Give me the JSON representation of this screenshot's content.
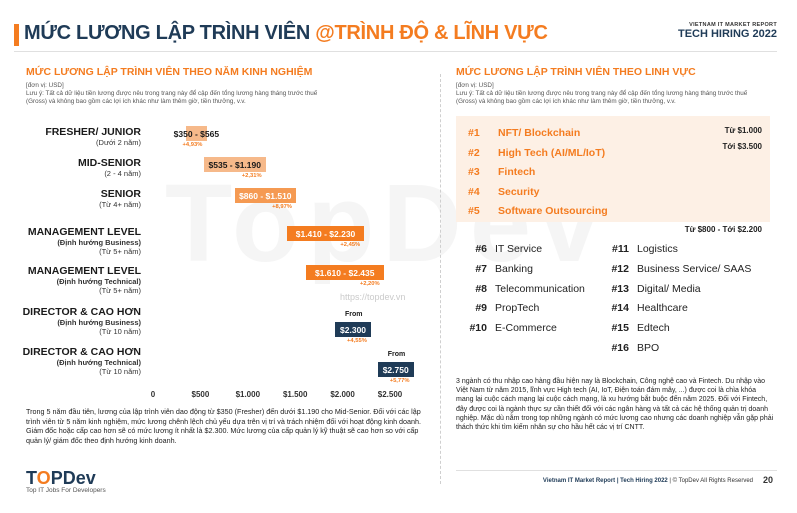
{
  "header": {
    "title_main": "MỨC LƯƠNG LẬP TRÌNH VIÊN ",
    "title_accent": "@TRÌNH ĐỘ & LĨNH VỰC",
    "report_small": "VIETNAM IT MARKET REPORT",
    "report_big": "TECH HIRING 2022"
  },
  "watermark": {
    "text": "TopDev",
    "url": "https://topdev.vn"
  },
  "left": {
    "title": "MỨC LƯƠNG LẬP TRÌNH VIÊN THEO NĂM KINH NGHIỆM",
    "unit": "[đơn vị: USD]",
    "note": "Lưu ý: Tất cả dữ liệu tiền lương được nêu trong trang này để cập đến tổng lương hàng tháng trước thuế (Gross) và không bao gồm các lợi ích khác như làm thêm giờ, tiền thưởng, v.v.",
    "paragraph": "Trong 5 năm đầu tiên, lương của lập trình viên dao động từ $350 (Fresher) đến dưới $1.190 cho Mid-Senior. Đối với các lập trình viên từ 5 năm kinh nghiệm, mức lương chênh lệch chủ yếu dựa trên vị trí và trách nhiệm đối với hoạt động kinh doanh. Giám đốc hoặc cấp cao hơn sẽ có mức lương ít nhất là $2.300. Mức lương của cấp quản lý kỹ thuật sẽ cao hơn so với cấp quản lý/ giám đốc theo định hướng kinh doanh."
  },
  "right": {
    "title": "MỨC LƯƠNG LẬP TRÌNH VIÊN THEO LINH VỰC",
    "unit": "[đơn vị: USD]",
    "note": "Lưu ý: Tất cả dữ liệu tiền lương được nêu trong trang này để cập đến tổng lương hàng tháng trước thuế (Gross) và không bao gồm các lợi ích khác như làm thêm giờ, tiền thưởng, v.v.",
    "top": [
      {
        "rank": "#1",
        "name": "NFT/ Blockchain"
      },
      {
        "rank": "#2",
        "name": "High Tech (AI/ML/IoT)"
      },
      {
        "rank": "#3",
        "name": "Fintech"
      },
      {
        "rank": "#4",
        "name": "Security"
      },
      {
        "rank": "#5",
        "name": "Software Outsourcing"
      }
    ],
    "top_range_from": "Từ $1.000",
    "top_range_to": "Tới $3.500",
    "rest_range": "Từ $800 - Tới $2.200",
    "rest_left": [
      {
        "rank": "#6",
        "name": "IT Service"
      },
      {
        "rank": "#7",
        "name": "Banking"
      },
      {
        "rank": "#8",
        "name": "Telecommunication"
      },
      {
        "rank": "#9",
        "name": "PropTech"
      },
      {
        "rank": "#10",
        "name": "E-Commerce"
      }
    ],
    "rest_right": [
      {
        "rank": "#11",
        "name": "Logistics"
      },
      {
        "rank": "#12",
        "name": "Business Service/ SAAS"
      },
      {
        "rank": "#13",
        "name": "Digital/ Media"
      },
      {
        "rank": "#14",
        "name": "Healthcare"
      },
      {
        "rank": "#15",
        "name": "Edtech"
      },
      {
        "rank": "#16",
        "name": "BPO"
      }
    ],
    "paragraph": "3 ngành có thu nhập cao hàng đầu hiện nay là Blockchain, Công nghệ cao và Fintech. Du nhập vào Việt Nam từ năm 2015, lĩnh vực High tech (AI, IoT, Điện toán đám mây, ...) được coi là chìa khóa mang lại cuộc cách mạng lại cuộc cách mạng, là xu hướng bắt buộc đến năm 2025. Đối với Fintech, đây được coi là ngành thực sự cần thiết đối với các ngân hàng và tất cả các hệ thống quản trị doanh nghiệp. Mặc dù nằm trong top những ngành có mức lương cao nhưng các doanh nghiệp vẫn gặp phải thách thức khi tìm kiếm nhân sự cho hầu hết các vị trí CNTT."
  },
  "footer": {
    "logo_a": "T",
    "logo_o": "O",
    "logo_b": "PDev",
    "tagline": "Top IT Jobs For Developers",
    "report": "Vietnam IT Market Report | Tech Hiring 2022",
    "copyright": " | © TopDev All Rights Reserved",
    "page": "20"
  },
  "colors": {
    "accent": "#f47c20",
    "navy": "#1f3b57",
    "bar_light": "#f6b98a",
    "bar_mid": "#f59a52",
    "bar_dark": "#f47c20",
    "bar_navy": "#1f3b57"
  },
  "chart_data": {
    "type": "bar",
    "orientation": "horizontal",
    "xlim": [
      0,
      2500
    ],
    "ticks": [
      "0",
      "$500",
      "$1.000",
      "$1.500",
      "$2.000",
      "$2.500"
    ],
    "tick_values": [
      0,
      500,
      1000,
      1500,
      2000,
      2500
    ],
    "rows": [
      {
        "label": "FRESHER/ JUNIOR",
        "sub1": "(Dưới 2 năm)",
        "sub2": "",
        "min": 350,
        "max": 565,
        "text": "$350 - $565",
        "pct": "+4,93%",
        "from": ""
      },
      {
        "label": "MID-SENIOR",
        "sub1": "(2 - 4 năm)",
        "sub2": "",
        "min": 535,
        "max": 1190,
        "text": "$535 - $1.190",
        "pct": "+2,31%",
        "from": ""
      },
      {
        "label": "SENIOR",
        "sub1": "(Từ 4+ năm)",
        "sub2": "",
        "min": 860,
        "max": 1510,
        "text": "$860 - $1.510",
        "pct": "+8,97%",
        "from": ""
      },
      {
        "label": "MANAGEMENT LEVEL",
        "sub1": "(Định hướng Business)",
        "sub2": "(Từ 5+ năm)",
        "min": 1410,
        "max": 2230,
        "text": "$1.410 - $2.230",
        "pct": "+2,45%",
        "from": ""
      },
      {
        "label": "MANAGEMENT LEVEL",
        "sub1": "(Định hướng Technical)",
        "sub2": "(Từ 5+ năm)",
        "min": 1610,
        "max": 2435,
        "text": "$1.610 - $2.435",
        "pct": "+2,20%",
        "from": ""
      },
      {
        "label": "DIRECTOR & CAO HƠN",
        "sub1": "(Định hướng Business)",
        "sub2": "(Từ 10 năm)",
        "min": 2300,
        "max": 2300,
        "text": "$2.300",
        "pct": "+4,55%",
        "from": "From"
      },
      {
        "label": "DIRECTOR & CAO HƠN",
        "sub1": "(Định hướng Technical)",
        "sub2": "(Từ 10 năm)",
        "min": 2750,
        "max": 2750,
        "text": "$2.750",
        "pct": "+5,77%",
        "from": "From"
      }
    ]
  }
}
